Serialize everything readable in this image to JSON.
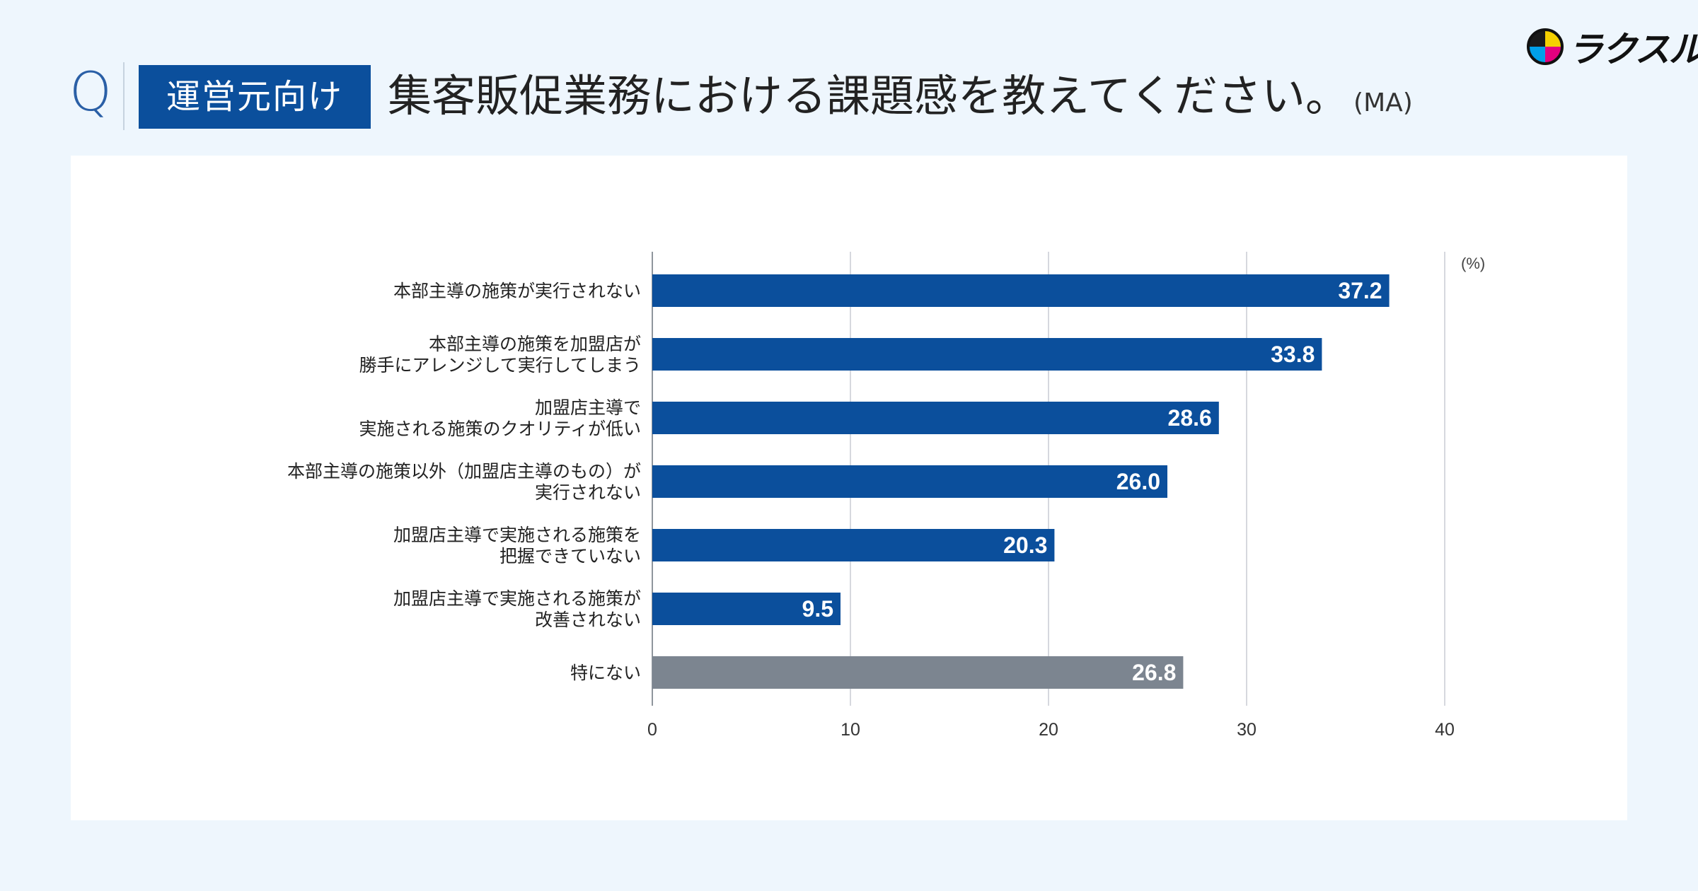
{
  "header": {
    "q_label": "Q",
    "badge": "運営元向け",
    "question": "集客販促業務における課題感を教えてください。",
    "suffix": "(MA)",
    "logo_text": "ラクスル"
  },
  "chart_data": {
    "type": "bar",
    "orientation": "horizontal",
    "unit_label": "(%)",
    "categories": [
      [
        "本部主導の施策が実行されない"
      ],
      [
        "本部主導の施策を加盟店が",
        "勝手にアレンジして実行してしまう"
      ],
      [
        "加盟店主導で",
        "実施される施策のクオリティが低い"
      ],
      [
        "本部主導の施策以外（加盟店主導のもの）が",
        "実行されない"
      ],
      [
        "加盟店主導で実施される施策を",
        "把握できていない"
      ],
      [
        "加盟店主導で実施される施策が",
        "改善されない"
      ],
      [
        "特にない"
      ]
    ],
    "values": [
      37.2,
      33.8,
      28.6,
      26.0,
      20.3,
      9.5,
      26.8
    ],
    "value_labels": [
      "37.2",
      "33.8",
      "28.6",
      "26.0",
      "20.3",
      "9.5",
      "26.8"
    ],
    "bar_colors": [
      "#0b4f9c",
      "#0b4f9c",
      "#0b4f9c",
      "#0b4f9c",
      "#0b4f9c",
      "#0b4f9c",
      "#7c8590"
    ],
    "xlim": [
      0,
      40
    ],
    "xticks": [
      "0",
      "10",
      "20",
      "30",
      "40"
    ],
    "grid": true
  }
}
